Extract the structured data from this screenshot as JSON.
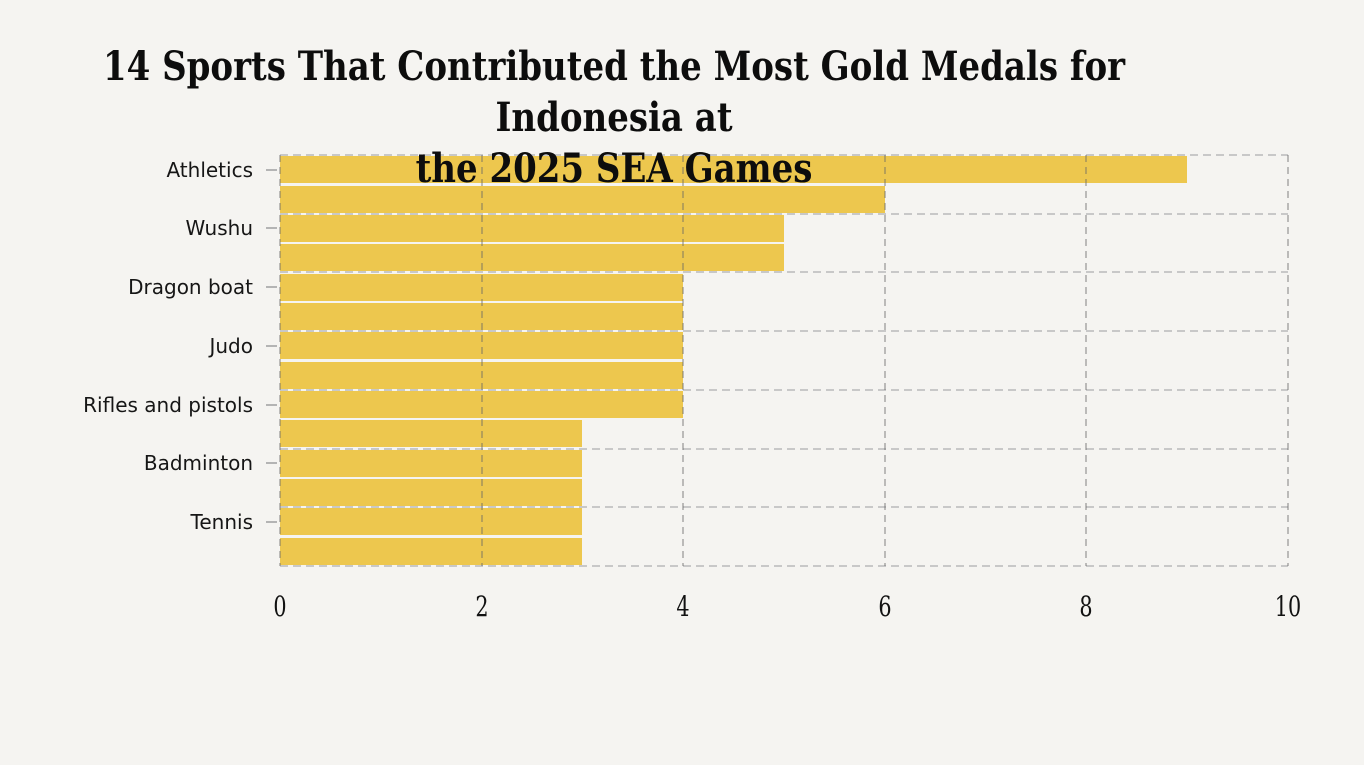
{
  "chart_data": {
    "type": "bar",
    "orientation": "horizontal",
    "title": "14 Sports That Contributed the Most Gold Medals for Indonesia at the 2025 SEA Games",
    "title_lines": [
      "14 Sports That Contributed the Most Gold Medals for Indonesia at",
      "the 2025 SEA Games"
    ],
    "categories": [
      "Athletics",
      "",
      "Wushu",
      "",
      "Dragon boat",
      "",
      "Judo",
      "",
      "Rifles and pistols",
      "",
      "Badminton",
      "",
      "Tennis",
      ""
    ],
    "values": [
      9,
      6,
      5,
      5,
      4,
      4,
      4,
      4,
      4,
      3,
      3,
      3,
      3,
      3
    ],
    "y_tick_labels": [
      "Athletics",
      "Wushu",
      "Dragon boat",
      "Judo",
      "Rifles and pistols",
      "Badminton",
      "Tennis"
    ],
    "x_ticks": [
      0,
      2,
      4,
      6,
      8,
      10
    ],
    "xlim": [
      0,
      10
    ],
    "xlabel": "",
    "ylabel": "",
    "grid": "dashed-both-axes",
    "legend": "none",
    "bar_color": "#edc74e",
    "background_color": "#f5f4f1",
    "grid_color": "#c8c8c8",
    "tick_color": "#b4b4b4",
    "text_color": "#161616"
  }
}
